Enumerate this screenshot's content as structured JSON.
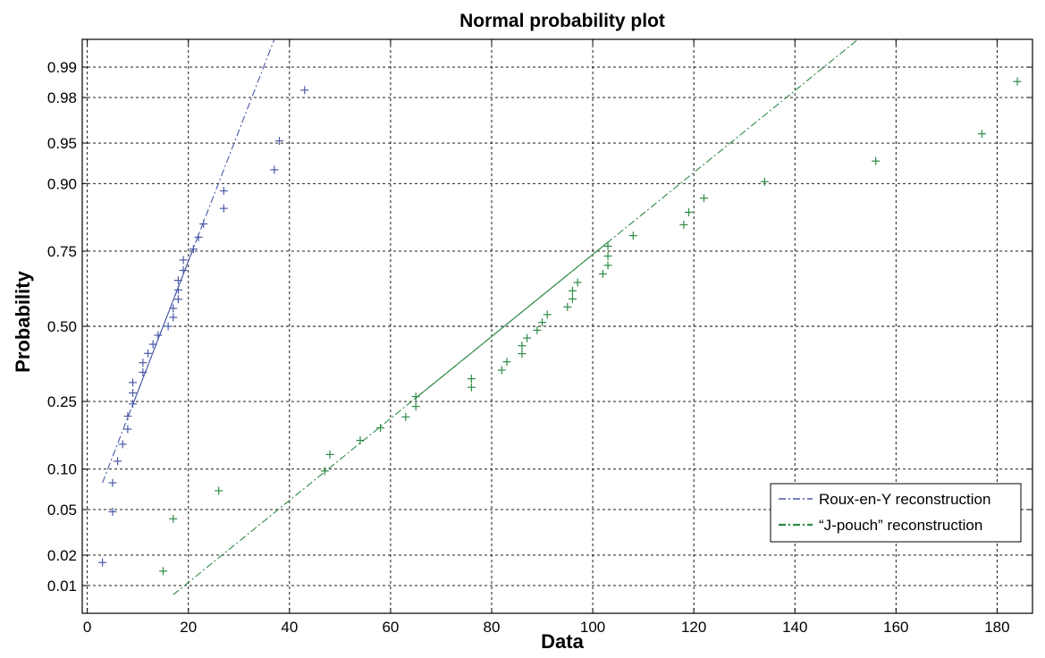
{
  "chart_data": {
    "type": "scatter",
    "title": "Normal probability plot",
    "xlabel": "Data",
    "ylabel": "Probability",
    "xlim": [
      -1,
      187
    ],
    "ylim_probability": [
      0.005,
      0.995
    ],
    "x_ticks": [
      0,
      20,
      40,
      60,
      80,
      100,
      120,
      140,
      160,
      180
    ],
    "x_tick_labels": [
      "0",
      "20",
      "40",
      "60",
      "80",
      "100",
      "120",
      "140",
      "160",
      "180"
    ],
    "y_ticks": [
      0.01,
      0.02,
      0.05,
      0.1,
      0.25,
      0.5,
      0.75,
      0.9,
      0.95,
      0.98,
      0.99
    ],
    "y_tick_labels": [
      "0.01",
      "0.02",
      "0.05",
      "0.10",
      "0.25",
      "0.50",
      "0.75",
      "0.90",
      "0.95",
      "0.98",
      "0.99"
    ],
    "grid": true,
    "legend_position": "bottom-right",
    "series": [
      {
        "name": "Roux-en-Y reconstruction",
        "color": "#4a5aa8",
        "marker": "+",
        "line_style": "dash-dot",
        "points": [
          [
            3,
            0.017
          ],
          [
            5,
            0.048
          ],
          [
            5,
            0.08
          ],
          [
            6,
            0.113
          ],
          [
            7,
            0.145
          ],
          [
            8,
            0.178
          ],
          [
            8,
            0.21
          ],
          [
            9,
            0.243
          ],
          [
            9,
            0.275
          ],
          [
            9,
            0.307
          ],
          [
            11,
            0.34
          ],
          [
            11,
            0.372
          ],
          [
            12,
            0.404
          ],
          [
            13,
            0.436
          ],
          [
            14,
            0.468
          ],
          [
            16,
            0.5
          ],
          [
            17,
            0.532
          ],
          [
            17,
            0.564
          ],
          [
            18,
            0.596
          ],
          [
            18,
            0.628
          ],
          [
            18,
            0.66
          ],
          [
            19,
            0.692
          ],
          [
            19,
            0.724
          ],
          [
            21,
            0.756
          ],
          [
            22,
            0.788
          ],
          [
            23,
            0.821
          ],
          [
            27,
            0.855
          ],
          [
            27,
            0.888
          ],
          [
            37,
            0.92
          ],
          [
            38,
            0.952
          ],
          [
            43,
            0.983
          ]
        ],
        "fit_line": {
          "x1": 3,
          "p1": 0.08,
          "x2": 37,
          "p2": 0.995
        },
        "fit_solid_range": [
          9,
          21
        ]
      },
      {
        "name": "“J-pouch” reconstruction",
        "color": "#2e8b46",
        "marker": "+",
        "line_style": "dash-dot",
        "points": [
          [
            15,
            0.014
          ],
          [
            17,
            0.042
          ],
          [
            26,
            0.07
          ],
          [
            47,
            0.097
          ],
          [
            48,
            0.125
          ],
          [
            54,
            0.153
          ],
          [
            58,
            0.181
          ],
          [
            63,
            0.208
          ],
          [
            65,
            0.236
          ],
          [
            65,
            0.264
          ],
          [
            76,
            0.292
          ],
          [
            76,
            0.319
          ],
          [
            82,
            0.347
          ],
          [
            83,
            0.375
          ],
          [
            86,
            0.403
          ],
          [
            86,
            0.431
          ],
          [
            87,
            0.458
          ],
          [
            89,
            0.486
          ],
          [
            90,
            0.514
          ],
          [
            91,
            0.542
          ],
          [
            95,
            0.569
          ],
          [
            96,
            0.597
          ],
          [
            96,
            0.625
          ],
          [
            97,
            0.653
          ],
          [
            102,
            0.681
          ],
          [
            103,
            0.708
          ],
          [
            103,
            0.736
          ],
          [
            103,
            0.764
          ],
          [
            108,
            0.792
          ],
          [
            118,
            0.819
          ],
          [
            119,
            0.847
          ],
          [
            122,
            0.875
          ],
          [
            134,
            0.903
          ],
          [
            156,
            0.931
          ],
          [
            177,
            0.958
          ],
          [
            184,
            0.986
          ]
        ],
        "fit_line": {
          "x1": 17,
          "p1": 0.008,
          "x2": 152.5,
          "p2": 0.995
        },
        "fit_solid_range": [
          65,
          103
        ]
      }
    ]
  }
}
